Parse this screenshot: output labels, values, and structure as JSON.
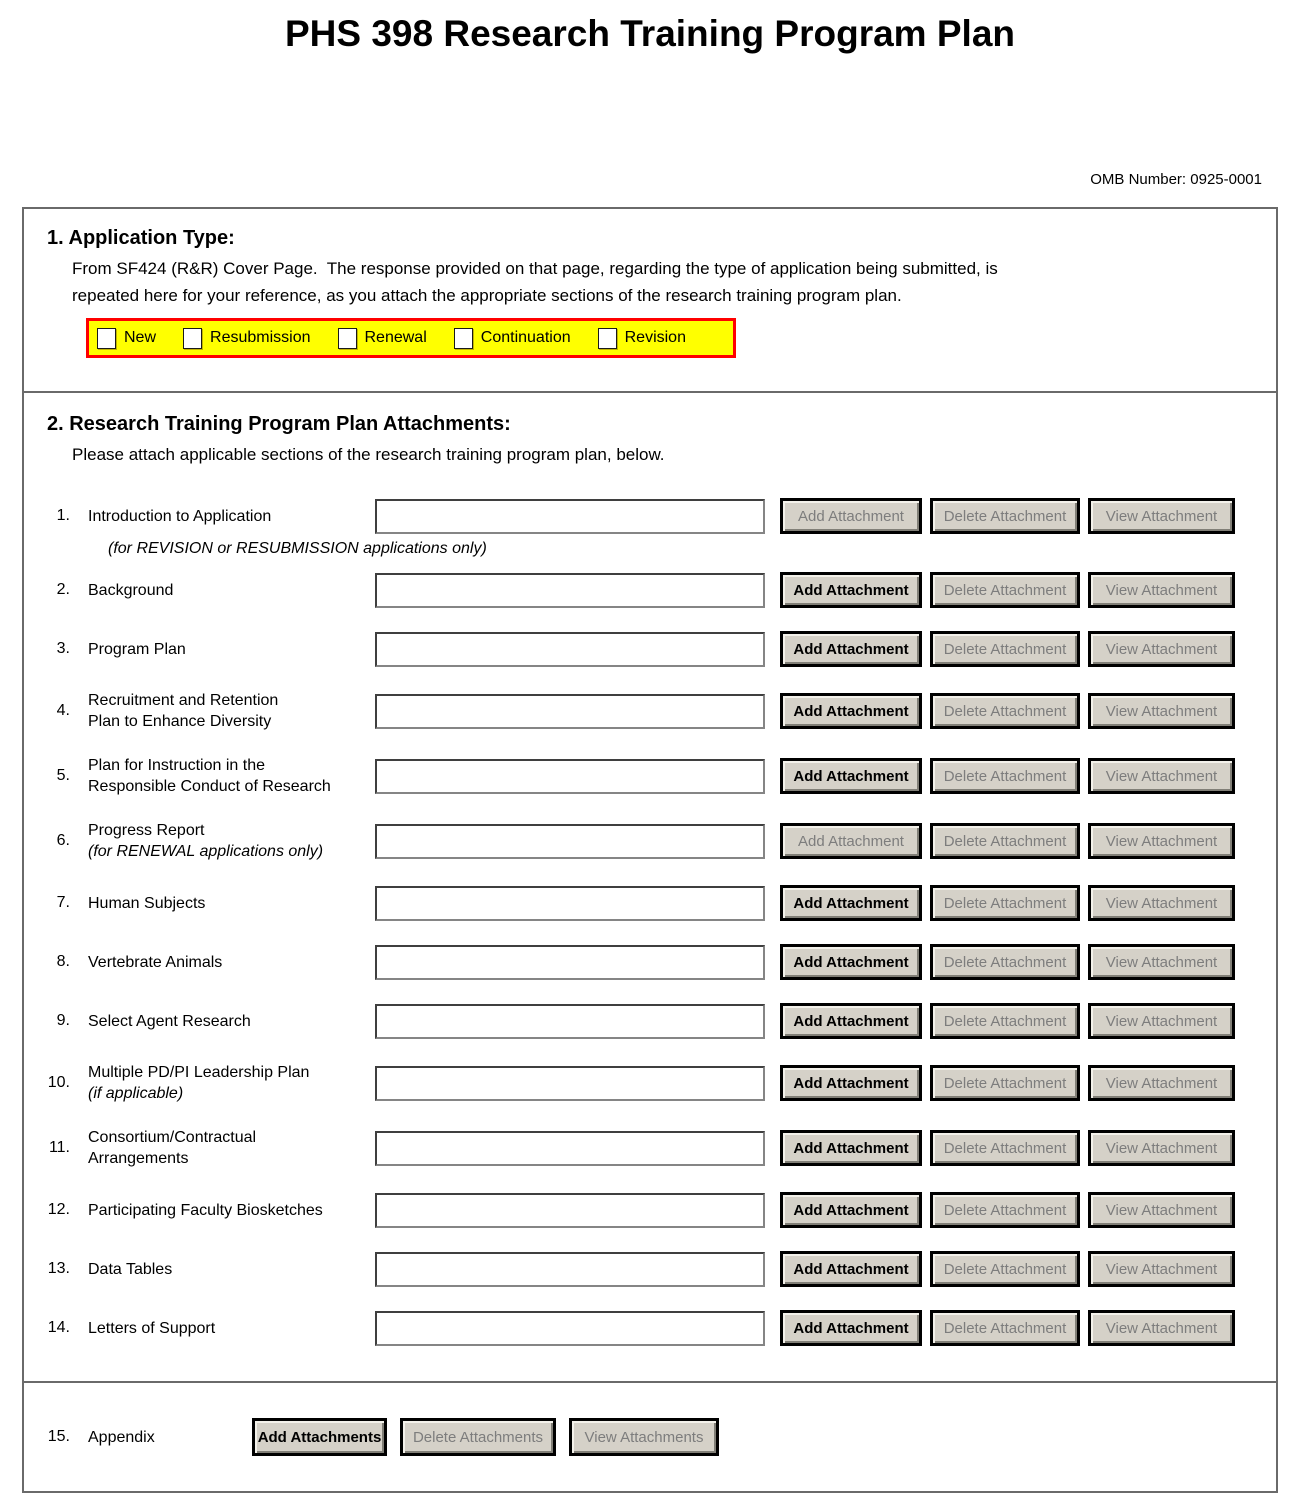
{
  "page": {
    "title": "PHS 398 Research Training Program Plan",
    "omb_label": "OMB Number: 0925-0001"
  },
  "colors": {
    "highlight_bar_bg": "#ffff00",
    "highlight_bar_border": "#ff0000",
    "button_face": "#d5d1c8",
    "disabled_text": "#7d7d7d"
  },
  "section1": {
    "heading": "1. Application Type:",
    "description": "From SF424 (R&R) Cover Page.  The response provided on that page, regarding the type of application being submitted, is\nrepeated here for your reference, as you attach the appropriate sections of the research training program plan.",
    "checkboxes": [
      {
        "label": "New",
        "checked": false
      },
      {
        "label": "Resubmission",
        "checked": false
      },
      {
        "label": "Renewal",
        "checked": false
      },
      {
        "label": "Continuation",
        "checked": false
      },
      {
        "label": "Revision",
        "checked": false
      }
    ]
  },
  "section2": {
    "heading": "2. Research Training Program Plan Attachments:",
    "description": "Please attach applicable sections of the research training program plan, below.",
    "buttons": {
      "add": "Add Attachment",
      "delete": "Delete Attachment",
      "view": "View Attachment"
    },
    "rows": [
      {
        "num": "1.",
        "label": "Introduction to Application",
        "note_below": "(for REVISION or RESUBMISSION applications only)",
        "filename": "",
        "add_enabled": false,
        "delete_enabled": false,
        "view_enabled": false
      },
      {
        "num": "2.",
        "label": "Background",
        "filename": "",
        "add_enabled": true,
        "delete_enabled": false,
        "view_enabled": false
      },
      {
        "num": "3.",
        "label": "Program Plan",
        "filename": "",
        "add_enabled": true,
        "delete_enabled": false,
        "view_enabled": false
      },
      {
        "num": "4.",
        "label": "Recruitment and Retention",
        "label2": "Plan to Enhance Diversity",
        "filename": "",
        "add_enabled": true,
        "delete_enabled": false,
        "view_enabled": false
      },
      {
        "num": "5.",
        "label": "Plan for Instruction in the",
        "label2": "Responsible Conduct of Research",
        "filename": "",
        "add_enabled": true,
        "delete_enabled": false,
        "view_enabled": false
      },
      {
        "num": "6.",
        "label": "Progress Report",
        "label2_italic": "(for RENEWAL applications only)",
        "filename": "",
        "add_enabled": false,
        "delete_enabled": false,
        "view_enabled": false
      },
      {
        "num": "7.",
        "label": "Human Subjects",
        "filename": "",
        "add_enabled": true,
        "delete_enabled": false,
        "view_enabled": false
      },
      {
        "num": "8.",
        "label": "Vertebrate Animals",
        "filename": "",
        "add_enabled": true,
        "delete_enabled": false,
        "view_enabled": false
      },
      {
        "num": "9.",
        "label": "Select Agent Research",
        "filename": "",
        "add_enabled": true,
        "delete_enabled": false,
        "view_enabled": false
      },
      {
        "num": "10.",
        "label": "Multiple PD/PI Leadership Plan",
        "label2_italic": "(if applicable)",
        "filename": "",
        "add_enabled": true,
        "delete_enabled": false,
        "view_enabled": false
      },
      {
        "num": "11.",
        "label": "Consortium/Contractual",
        "label2": "Arrangements",
        "filename": "",
        "add_enabled": true,
        "delete_enabled": false,
        "view_enabled": false
      },
      {
        "num": "12.",
        "label": "Participating Faculty Biosketches",
        "filename": "",
        "add_enabled": true,
        "delete_enabled": false,
        "view_enabled": false
      },
      {
        "num": "13.",
        "label": "Data Tables",
        "filename": "",
        "add_enabled": true,
        "delete_enabled": false,
        "view_enabled": false
      },
      {
        "num": "14.",
        "label": "Letters of Support",
        "filename": "",
        "add_enabled": true,
        "delete_enabled": false,
        "view_enabled": false
      }
    ],
    "appendix": {
      "num": "15.",
      "label": "Appendix",
      "buttons": {
        "add": "Add Attachments",
        "delete": "Delete Attachments",
        "view": "View Attachments"
      },
      "add_enabled": true,
      "delete_enabled": false,
      "view_enabled": false
    }
  }
}
